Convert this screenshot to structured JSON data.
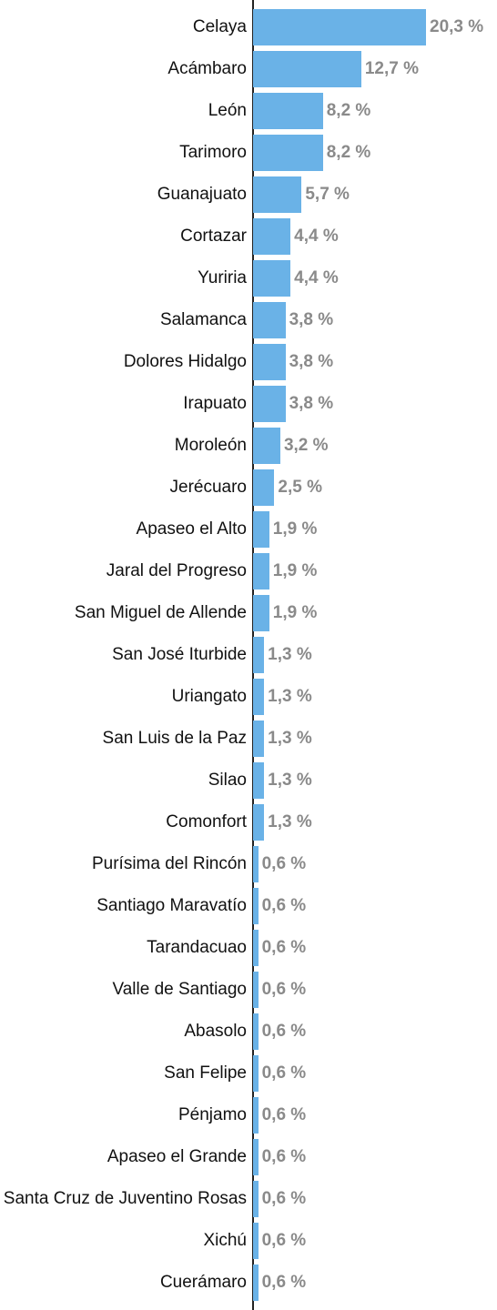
{
  "chart_data": {
    "type": "bar",
    "orientation": "horizontal",
    "color": "#6ab2e7",
    "categories": [
      "Celaya",
      "Acámbaro",
      "León",
      "Tarimoro",
      "Guanajuato",
      "Cortazar",
      "Yuriria",
      "Salamanca",
      "Dolores Hidalgo",
      "Irapuato",
      "Moroleón",
      "Jerécuaro",
      "Apaseo el Alto",
      "Jaral del Progreso",
      "San Miguel de Allende",
      "San José Iturbide",
      "Uriangato",
      "San Luis de la Paz",
      "Silao",
      "Comonfort",
      "Purísima del Rincón",
      "Santiago Maravatío",
      "Tarandacuao",
      "Valle de Santiago",
      "Abasolo",
      "San Felipe",
      "Pénjamo",
      "Apaseo el Grande",
      "Santa Cruz de Juventino Rosas",
      "Xichú",
      "Cuerámaro"
    ],
    "values": [
      20.3,
      12.7,
      8.2,
      8.2,
      5.7,
      4.4,
      4.4,
      3.8,
      3.8,
      3.8,
      3.2,
      2.5,
      1.9,
      1.9,
      1.9,
      1.3,
      1.3,
      1.3,
      1.3,
      1.3,
      0.6,
      0.6,
      0.6,
      0.6,
      0.6,
      0.6,
      0.6,
      0.6,
      0.6,
      0.6,
      0.6
    ],
    "value_labels": [
      "20,3 %",
      "12,7 %",
      "8,2 %",
      "8,2 %",
      "5,7 %",
      "4,4 %",
      "4,4 %",
      "3,8 %",
      "3,8 %",
      "3,8 %",
      "3,2 %",
      "2,5 %",
      "1,9 %",
      "1,9 %",
      "1,9 %",
      "1,3 %",
      "1,3 %",
      "1,3 %",
      "1,3 %",
      "1,3 %",
      "0,6 %",
      "0,6 %",
      "0,6 %",
      "0,6 %",
      "0,6 %",
      "0,6 %",
      "0,6 %",
      "0,6 %",
      "0,6 %",
      "0,6 %",
      "0,6 %"
    ]
  }
}
